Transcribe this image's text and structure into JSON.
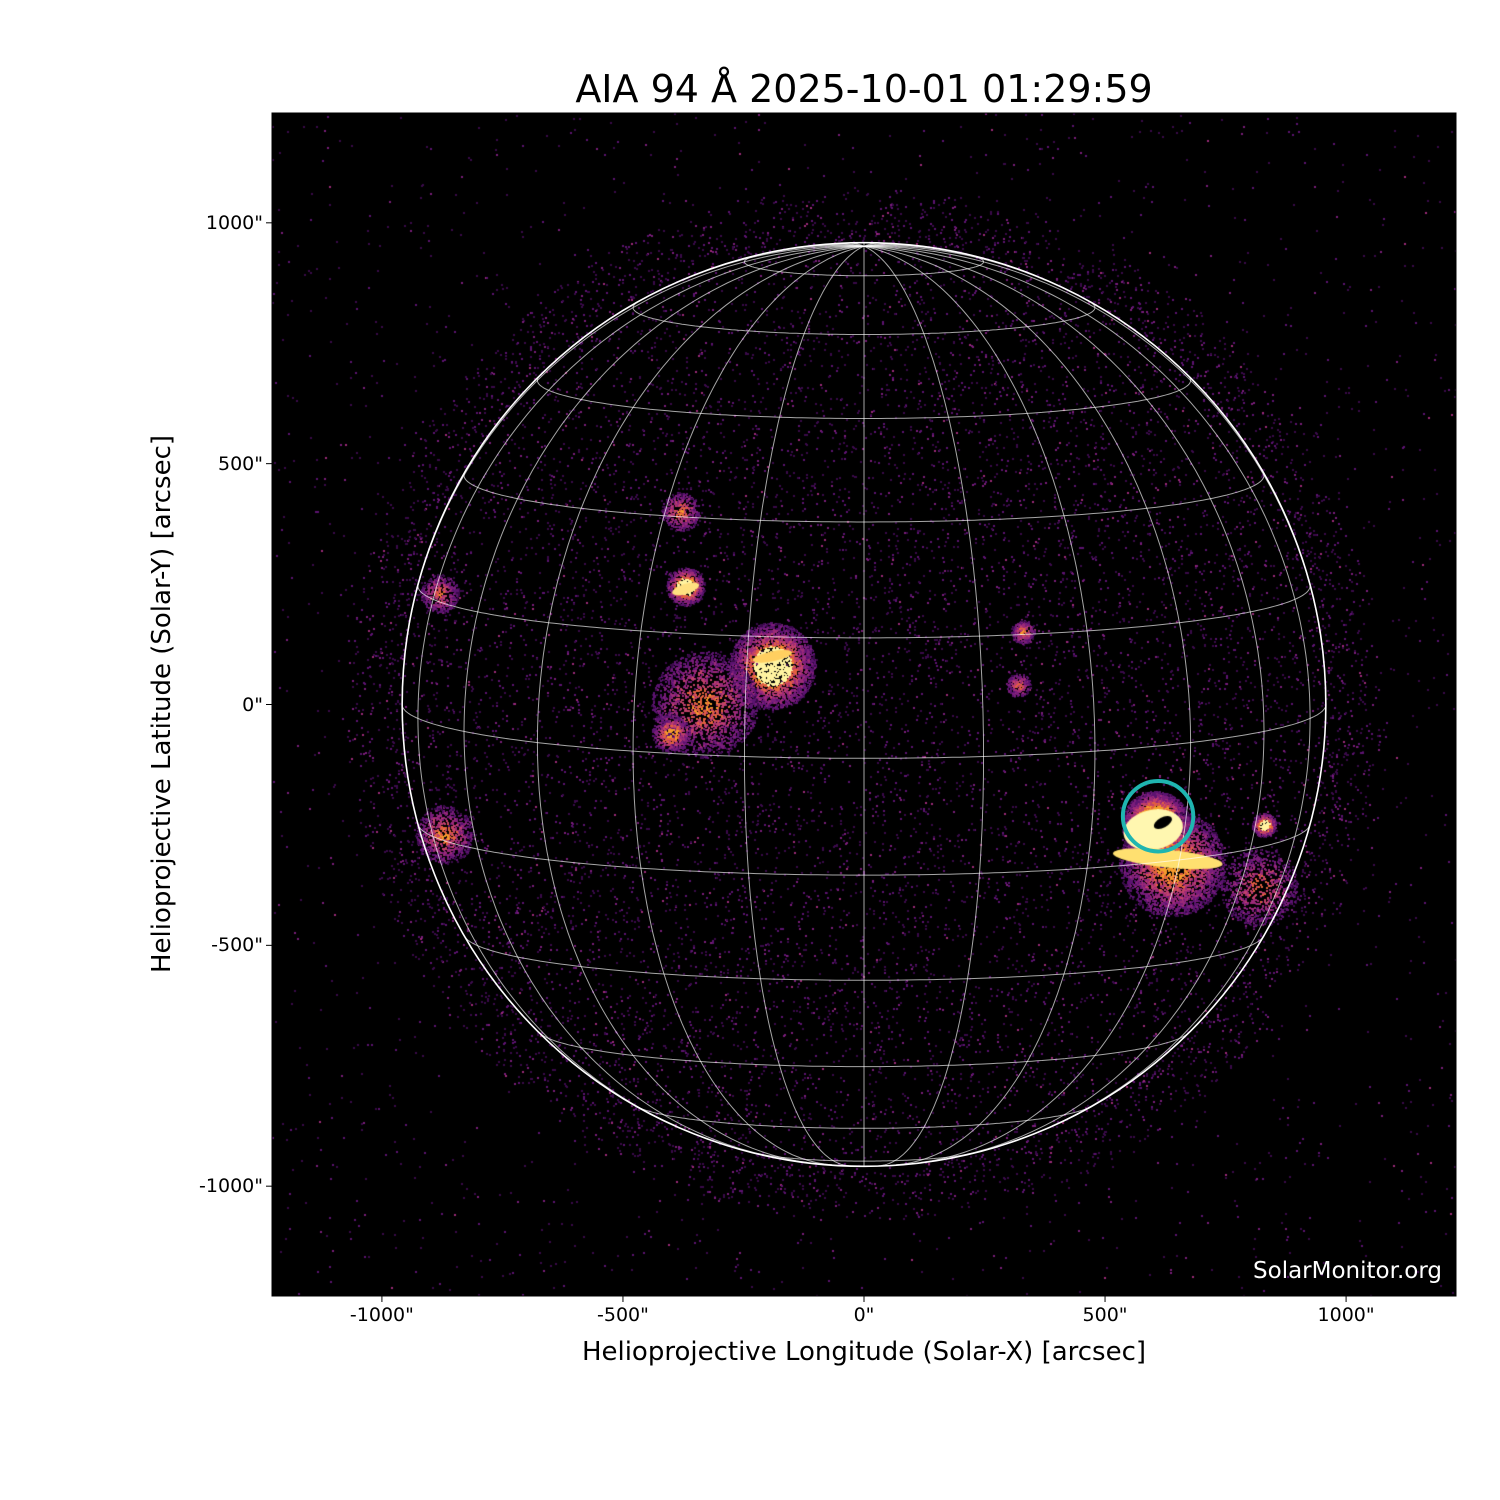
{
  "chart_data": {
    "type": "image",
    "title": "AIA 94 Å 2025-10-01 01:29:59",
    "xlabel": "Helioprojective Longitude (Solar-X) [arcsec]",
    "ylabel": "Helioprojective Latitude (Solar-Y) [arcsec]",
    "xlim": [
      -1228,
      1228
    ],
    "ylim": [
      -1228,
      1228
    ],
    "xticks": [
      {
        "value": -1000,
        "label": "-1000\""
      },
      {
        "value": -500,
        "label": "-500\""
      },
      {
        "value": 0,
        "label": "0\""
      },
      {
        "value": 500,
        "label": "500\""
      },
      {
        "value": 1000,
        "label": "1000\""
      }
    ],
    "yticks": [
      {
        "value": 1000,
        "label": "1000\""
      },
      {
        "value": 500,
        "label": "500\""
      },
      {
        "value": 0,
        "label": "0\""
      },
      {
        "value": -500,
        "label": "-500\""
      },
      {
        "value": -1000,
        "label": "-1000\""
      }
    ],
    "colormap": "sdoaia94",
    "solar_radius_arcsec": 958,
    "grid": true,
    "grid_spacing_deg": 15,
    "grid_color": "#ffffff",
    "annotations": [
      {
        "type": "circle",
        "center": [
          610,
          -232
        ],
        "radius": 73,
        "color": "#1fb5b0"
      }
    ],
    "watermark": "SolarMonitor.org"
  }
}
